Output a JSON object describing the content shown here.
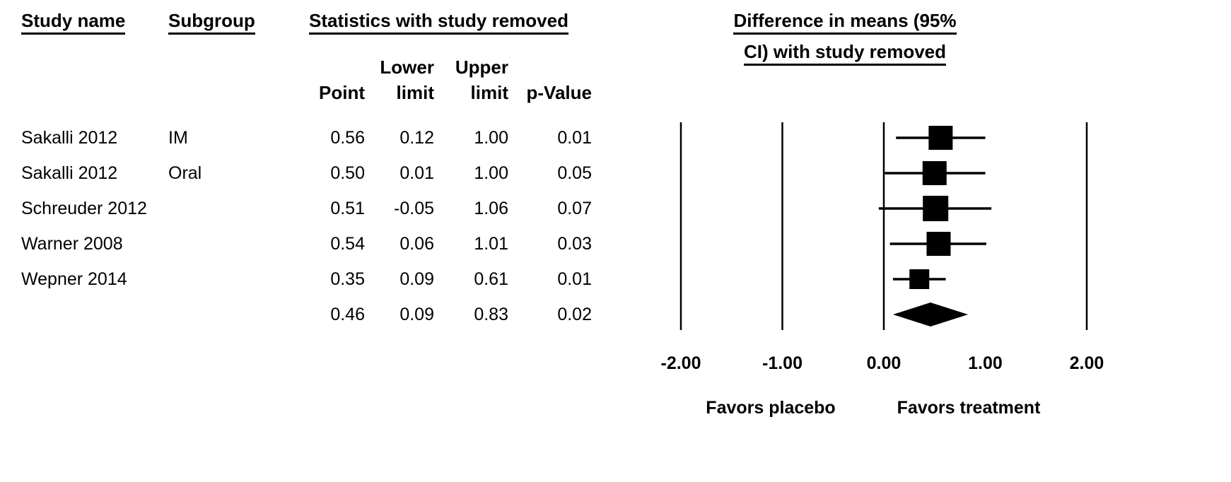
{
  "headers": {
    "study": "Study name",
    "subgroup": "Subgroup",
    "stats": "Statistics with study removed",
    "plot_line1": "Difference in means (95%",
    "plot_line2": "CI) with study removed",
    "point": "Point",
    "lower_top": "Lower",
    "lower_bottom": "limit",
    "upper_top": "Upper",
    "upper_bottom": "limit",
    "pvalue": "p-Value"
  },
  "rows": [
    {
      "study": "Sakalli 2012",
      "subgroup": "IM",
      "point": "0.56",
      "lower": "0.12",
      "upper": "1.00",
      "p": "0.01"
    },
    {
      "study": "Sakalli 2012",
      "subgroup": "Oral",
      "point": "0.50",
      "lower": "0.01",
      "upper": "1.00",
      "p": "0.05"
    },
    {
      "study": "Schreuder 2012",
      "subgroup": "",
      "point": "0.51",
      "lower": "-0.05",
      "upper": "1.06",
      "p": "0.07"
    },
    {
      "study": "Warner 2008",
      "subgroup": "",
      "point": "0.54",
      "lower": "0.06",
      "upper": "1.01",
      "p": "0.03"
    },
    {
      "study": "Wepner 2014",
      "subgroup": "",
      "point": "0.35",
      "lower": "0.09",
      "upper": "0.61",
      "p": "0.01"
    },
    {
      "study": "",
      "subgroup": "",
      "point": "0.46",
      "lower": "0.09",
      "upper": "0.83",
      "p": "0.02"
    }
  ],
  "chart_data": {
    "type": "forest",
    "title": "Difference in means (95% CI) with study removed",
    "stats_title": "Statistics with study removed",
    "studies": [
      {
        "study": "Sakalli 2012",
        "subgroup": "IM",
        "point": 0.56,
        "lower": 0.12,
        "upper": 1.0,
        "p_value": 0.01
      },
      {
        "study": "Sakalli 2012",
        "subgroup": "Oral",
        "point": 0.5,
        "lower": 0.01,
        "upper": 1.0,
        "p_value": 0.05
      },
      {
        "study": "Schreuder 2012",
        "subgroup": "",
        "point": 0.51,
        "lower": -0.05,
        "upper": 1.06,
        "p_value": 0.07
      },
      {
        "study": "Warner 2008",
        "subgroup": "",
        "point": 0.54,
        "lower": 0.06,
        "upper": 1.01,
        "p_value": 0.03
      },
      {
        "study": "Wepner 2014",
        "subgroup": "",
        "point": 0.35,
        "lower": 0.09,
        "upper": 0.61,
        "p_value": 0.01
      }
    ],
    "summary": {
      "point": 0.46,
      "lower": 0.09,
      "upper": 0.83,
      "p_value": 0.02
    },
    "xlim": [
      -2,
      2
    ],
    "x_ticks": [
      -2,
      -1,
      0,
      1,
      2
    ],
    "x_tick_labels": [
      "-2.00",
      "-1.00",
      "0.00",
      "1.00",
      "2.00"
    ],
    "gridlines_at": [
      -2,
      -1,
      0,
      2
    ],
    "xlabel_left": "Favors placebo",
    "xlabel_right": "Favors treatment",
    "marker_sizes": [
      34,
      34,
      36,
      34,
      28
    ],
    "diamond_half_height": 17,
    "marker_color": "#000000"
  }
}
